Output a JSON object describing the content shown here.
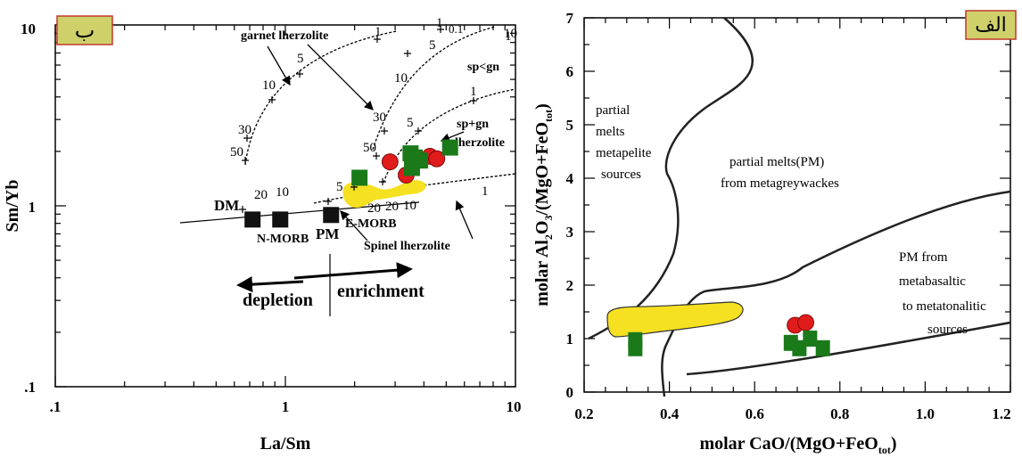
{
  "chart_data": [
    {
      "type": "scatter",
      "panel_label": "ب",
      "xscale": "log",
      "yscale": "log",
      "xlim": [
        0.1,
        10
      ],
      "ylim": [
        0.1,
        10
      ],
      "xlabel": "La/Sm",
      "ylabel": "Sm/Yb",
      "xticks": [
        ".1",
        "1",
        "10"
      ],
      "yticks": [
        ".1",
        "1",
        "10"
      ],
      "series": [
        {
          "marker": "square",
          "color": "#111111",
          "x": [
            0.72,
            0.95,
            1.58
          ],
          "y": [
            0.84,
            0.84,
            0.89
          ]
        },
        {
          "marker": "circle",
          "color": "#e01b1b",
          "x": [
            2.85,
            3.35,
            4.25,
            4.55
          ],
          "y": [
            1.75,
            1.48,
            1.88,
            1.82
          ]
        },
        {
          "marker": "square",
          "color": "#1a7a1a",
          "x": [
            2.1,
            3.5,
            3.55,
            3.85,
            5.2,
            3.65
          ],
          "y": [
            1.43,
            1.95,
            1.62,
            1.78,
            2.1,
            1.85
          ]
        }
      ],
      "field_label": "",
      "annotations": [
        "garnet lherzolite",
        "sp<gn",
        "sp+gn",
        "lherzolite",
        "Spinel lherzolite",
        "DM",
        "N-MORB",
        "PM",
        "E-MORB",
        "depletion",
        "enrichment"
      ],
      "curve_labels": [
        "1",
        "5",
        "10",
        "30",
        "50",
        "0.1",
        "1",
        "5",
        "10",
        "30",
        "50",
        "1",
        "5",
        "10",
        "20",
        "1",
        "5",
        "10",
        "20",
        "1",
        "10",
        "20"
      ]
    },
    {
      "type": "scatter",
      "panel_label": "الف",
      "xlim": [
        0.2,
        1.2
      ],
      "ylim": [
        0,
        7
      ],
      "xlabel": "molar CaO/(MgO+FeO",
      "xlabel_sub": "tot",
      "xlabel_end": ")",
      "ylabel_parts": [
        "molar  Al",
        "2",
        "O",
        "3",
        "/(MgO+FeO",
        "tot",
        ")"
      ],
      "xticks": [
        "0.2",
        "0.4",
        "0.6",
        "0.8",
        "1.0",
        "1.2"
      ],
      "yticks": [
        "0",
        "1",
        "2",
        "3",
        "4",
        "5",
        "6",
        "7"
      ],
      "series": [
        {
          "marker": "circle",
          "color": "#e01b1b",
          "x": [
            0.695,
            0.72
          ],
          "y": [
            1.25,
            1.3
          ]
        },
        {
          "marker": "square",
          "color": "#1a7a1a",
          "x": [
            0.32,
            0.32,
            0.685,
            0.705,
            0.73,
            0.76
          ],
          "y": [
            0.97,
            0.82,
            0.92,
            0.82,
            1.0,
            0.82
          ]
        }
      ],
      "field_labels": [
        [
          "partial",
          "melts",
          "metapelite",
          "sources"
        ],
        [
          "partial  melts(PM)",
          "from metagreywackes"
        ],
        [
          "PM from",
          "metabasaltic",
          "to metatonalitic",
          "sources"
        ]
      ]
    }
  ]
}
